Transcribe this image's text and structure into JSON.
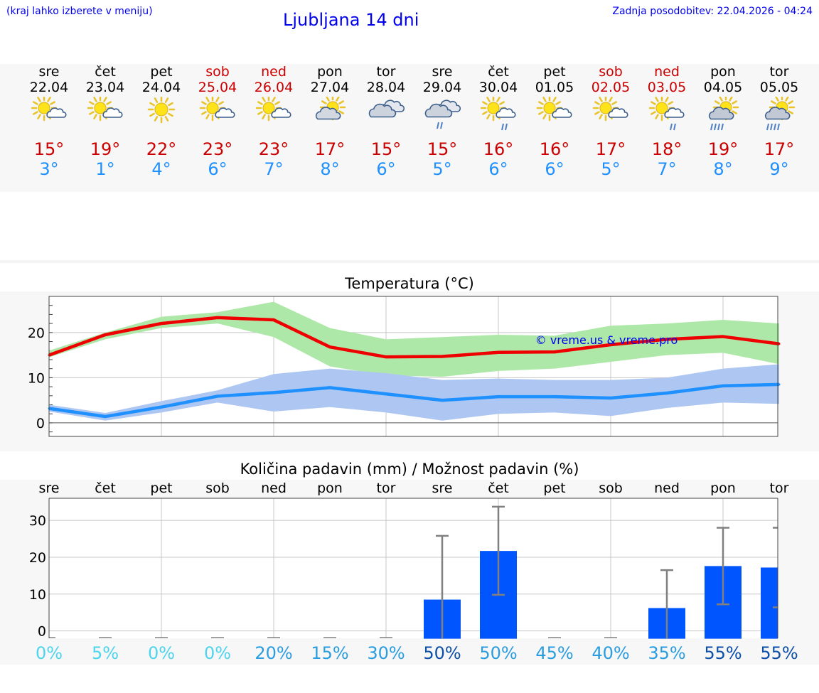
{
  "header": {
    "hint": "(kraj lahko izberete v meniju)",
    "title": "Ljubljana 14 dni",
    "updated": "Zadnja posodobitev: 22.04.2026 - 04:24"
  },
  "days": [
    {
      "name": "sre",
      "date": "22.04",
      "weekend": false,
      "icon": "sun-cloud-icon",
      "hi": "15°",
      "lo": "3°"
    },
    {
      "name": "čet",
      "date": "23.04",
      "weekend": false,
      "icon": "sun-cloud-icon",
      "hi": "19°",
      "lo": "1°"
    },
    {
      "name": "pet",
      "date": "24.04",
      "weekend": false,
      "icon": "sun-icon",
      "hi": "22°",
      "lo": "4°"
    },
    {
      "name": "sob",
      "date": "25.04",
      "weekend": true,
      "icon": "sun-cloud-icon",
      "hi": "23°",
      "lo": "6°"
    },
    {
      "name": "ned",
      "date": "26.04",
      "weekend": true,
      "icon": "sun-cloud-icon",
      "hi": "23°",
      "lo": "7°"
    },
    {
      "name": "pon",
      "date": "27.04",
      "weekend": false,
      "icon": "partly-cloudy-icon",
      "hi": "17°",
      "lo": "8°"
    },
    {
      "name": "tor",
      "date": "28.04",
      "weekend": false,
      "icon": "cloudy-icon",
      "hi": "15°",
      "lo": "6°"
    },
    {
      "name": "sre",
      "date": "29.04",
      "weekend": false,
      "icon": "cloud-rain-icon",
      "hi": "15°",
      "lo": "5°"
    },
    {
      "name": "čet",
      "date": "30.04",
      "weekend": false,
      "icon": "sun-cloud-rain-icon",
      "hi": "16°",
      "lo": "6°"
    },
    {
      "name": "pet",
      "date": "01.05",
      "weekend": false,
      "icon": "sun-cloud-icon",
      "hi": "16°",
      "lo": "6°"
    },
    {
      "name": "sob",
      "date": "02.05",
      "weekend": true,
      "icon": "sun-cloud-icon",
      "hi": "17°",
      "lo": "5°"
    },
    {
      "name": "ned",
      "date": "03.05",
      "weekend": true,
      "icon": "sun-cloud-rain-icon",
      "hi": "18°",
      "lo": "7°"
    },
    {
      "name": "pon",
      "date": "04.05",
      "weekend": false,
      "icon": "sun-cloud-heavy-rain-icon",
      "hi": "19°",
      "lo": "8°"
    },
    {
      "name": "tor",
      "date": "05.05",
      "weekend": false,
      "icon": "sun-cloud-heavy-rain-icon",
      "hi": "17°",
      "lo": "9°"
    }
  ],
  "colors": {
    "hi": "#ee0000",
    "lo": "#1e90ff",
    "hi_band": "#aee8a8",
    "lo_band": "#aec6f2",
    "bar": "#0055ff",
    "error": "#808080",
    "weekend": "#cc0000",
    "link": "#0000ee"
  },
  "chart_data": [
    {
      "type": "line",
      "title": "Temperatura (°C)",
      "x": [
        0,
        1,
        2,
        3,
        4,
        5,
        6,
        7,
        8,
        9,
        10,
        11,
        12,
        13
      ],
      "ylim": [
        -3,
        28
      ],
      "yticks": [
        0,
        10,
        20
      ],
      "watermark": "© vreme.us & vreme.pro",
      "series": [
        {
          "name": "max",
          "values": [
            15,
            19.5,
            22,
            23.3,
            22.8,
            16.8,
            14.6,
            14.7,
            15.6,
            15.7,
            17.3,
            18.5,
            19.1,
            17.5
          ],
          "band_low": [
            14.5,
            18.5,
            21,
            22,
            19,
            12.5,
            10.5,
            10.2,
            11.5,
            12,
            13.5,
            15,
            15.5,
            13
          ],
          "band_high": [
            16,
            20,
            23.5,
            24.5,
            26.8,
            21,
            18.5,
            19,
            19.5,
            19.3,
            21.5,
            22,
            22.8,
            22
          ]
        },
        {
          "name": "min",
          "values": [
            3.2,
            1.4,
            3.5,
            5.9,
            6.7,
            7.8,
            6.4,
            5,
            5.8,
            5.8,
            5.5,
            6.6,
            8.2,
            8.5
          ],
          "band_low": [
            2.5,
            0.5,
            2.3,
            4.5,
            2.5,
            3.5,
            2.3,
            0.5,
            2,
            2.3,
            1.5,
            3.3,
            4.5,
            4.2
          ],
          "band_high": [
            4,
            2.2,
            4.8,
            7.2,
            10.8,
            12,
            11,
            9.5,
            9.8,
            9.5,
            9.5,
            10,
            12,
            13
          ]
        }
      ]
    },
    {
      "type": "bar",
      "title": "Količina padavin (mm) / Možnost padavin (%)",
      "categories": [
        "sre",
        "čet",
        "pet",
        "sob",
        "ned",
        "pon",
        "tor",
        "sre",
        "čet",
        "pet",
        "sob",
        "ned",
        "pon",
        "tor"
      ],
      "values": [
        0,
        0,
        0,
        0,
        0,
        0,
        0,
        8.5,
        21.7,
        0,
        0,
        6.2,
        17.6,
        17.2
      ],
      "error_low": [
        0,
        0,
        0,
        0,
        0,
        0,
        0,
        0,
        9.8,
        0,
        0,
        0,
        7.2,
        6.4
      ],
      "error_high": [
        0,
        0,
        0,
        0,
        0,
        0,
        0,
        25.8,
        33.7,
        0,
        0,
        16.5,
        28,
        28
      ],
      "probability": [
        "0%",
        "5%",
        "0%",
        "0%",
        "20%",
        "15%",
        "30%",
        "50%",
        "50%",
        "45%",
        "40%",
        "35%",
        "55%",
        "55%"
      ],
      "probability_colors": [
        "#4dd4ee",
        "#4dd4ee",
        "#4dd4ee",
        "#4dd4ee",
        "#2a9de0",
        "#2a9de0",
        "#2a9de0",
        "#0b4fa8",
        "#2a9de0",
        "#2a9de0",
        "#2a9de0",
        "#2a9de0",
        "#0b4fa8",
        "#0b4fa8"
      ],
      "ylim": [
        -2,
        36
      ],
      "yticks": [
        0,
        10,
        20,
        30
      ]
    }
  ]
}
